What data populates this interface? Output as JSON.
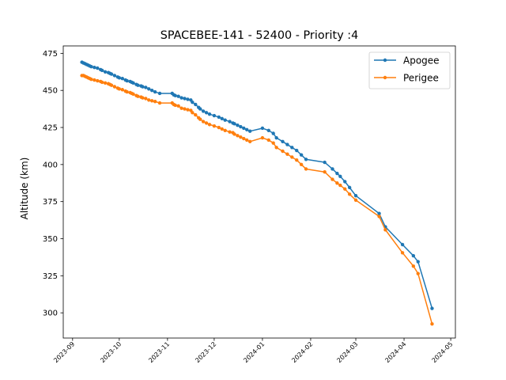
{
  "chart_data": {
    "type": "line",
    "title": "SPACEBEE-141 - 52400 - Priority :4",
    "xlabel": "",
    "ylabel": "Altitude (km)",
    "xlim": [
      "2023-08-26",
      "2024-05-04"
    ],
    "ylim": [
      283,
      480
    ],
    "x_ticks": [
      "2023-09",
      "2023-10",
      "2023-11",
      "2023-12",
      "2024-01",
      "2024-02",
      "2024-03",
      "2024-04",
      "2024-05"
    ],
    "y_ticks": [
      300,
      325,
      350,
      375,
      400,
      425,
      450,
      475
    ],
    "grid": false,
    "legend_position": "top-right",
    "x": [
      "2023-09-07",
      "2023-09-08",
      "2023-09-09",
      "2023-09-10",
      "2023-09-11",
      "2023-09-12",
      "2023-09-13",
      "2023-09-15",
      "2023-09-17",
      "2023-09-19",
      "2023-09-20",
      "2023-09-22",
      "2023-09-24",
      "2023-09-25",
      "2023-09-26",
      "2023-09-28",
      "2023-09-30",
      "2023-10-01",
      "2023-10-03",
      "2023-10-05",
      "2023-10-06",
      "2023-10-08",
      "2023-10-09",
      "2023-10-10",
      "2023-10-12",
      "2023-10-13",
      "2023-10-15",
      "2023-10-16",
      "2023-10-18",
      "2023-10-20",
      "2023-10-22",
      "2023-10-24",
      "2023-10-27",
      "2023-11-04",
      "2023-11-05",
      "2023-11-06",
      "2023-11-08",
      "2023-11-10",
      "2023-11-12",
      "2023-11-14",
      "2023-11-16",
      "2023-11-17",
      "2023-11-19",
      "2023-11-21",
      "2023-11-22",
      "2023-11-24",
      "2023-11-26",
      "2023-11-28",
      "2023-12-01",
      "2023-12-04",
      "2023-12-06",
      "2023-12-08",
      "2023-12-11",
      "2023-12-13",
      "2023-12-14",
      "2023-12-16",
      "2023-12-18",
      "2023-12-20",
      "2023-12-22",
      "2023-12-24",
      "2024-01-01",
      "2024-01-05",
      "2024-01-08",
      "2024-01-10",
      "2024-01-14",
      "2024-01-17",
      "2024-01-20",
      "2024-01-23",
      "2024-01-26",
      "2024-01-29",
      "2024-02-10",
      "2024-02-15",
      "2024-02-18",
      "2024-02-20",
      "2024-02-23",
      "2024-02-26",
      "2024-03-01",
      "2024-03-16",
      "2024-03-20",
      "2024-03-31",
      "2024-04-07",
      "2024-04-10",
      "2024-04-19"
    ],
    "series": [
      {
        "name": "Apogee",
        "color": "#1f77b4",
        "values": [
          469,
          468.5,
          468,
          467.5,
          467,
          466.5,
          466,
          465.5,
          465,
          464,
          463.5,
          462.5,
          462,
          461.5,
          461,
          460,
          459,
          458.5,
          458,
          457,
          456.5,
          456,
          455.5,
          455,
          454,
          453.5,
          453,
          452.5,
          452,
          451,
          450,
          449,
          448,
          448,
          447,
          446.5,
          446,
          445,
          444.5,
          444,
          443.5,
          442,
          440.5,
          438.5,
          437.5,
          436,
          435,
          434,
          433,
          432,
          431,
          430,
          429,
          428,
          427.5,
          426.5,
          425.5,
          424.5,
          423.5,
          422.5,
          424.5,
          423,
          421,
          418,
          415.5,
          413.5,
          411.5,
          409.5,
          406.5,
          403.5,
          401.5,
          397,
          394,
          392,
          388.5,
          384.5,
          379,
          367,
          358,
          346,
          338.5,
          334.5,
          303
        ]
      },
      {
        "name": "Perigee",
        "color": "#ff7f0e",
        "values": [
          460,
          460,
          459.5,
          459,
          458.5,
          458,
          457.5,
          457,
          456.5,
          456,
          455.5,
          455,
          454.5,
          454,
          453.5,
          452.5,
          451.5,
          451,
          450.5,
          449.5,
          449,
          448.5,
          448,
          447.5,
          446.5,
          446,
          445.5,
          445,
          444.5,
          443.5,
          443,
          442.5,
          441.5,
          441.5,
          440.5,
          440,
          439.5,
          438,
          437.5,
          437,
          436.5,
          435,
          433.5,
          431.5,
          430.5,
          429,
          428,
          427,
          426,
          425,
          424,
          423,
          422,
          421.5,
          420.5,
          419.5,
          418.5,
          417.5,
          416.5,
          415.5,
          418,
          416.5,
          414.5,
          411.5,
          409,
          407,
          405,
          403,
          400,
          397,
          395,
          390,
          387.5,
          386,
          383.5,
          380,
          376,
          365,
          356,
          340.5,
          331.5,
          326.5,
          292.5
        ]
      }
    ]
  }
}
